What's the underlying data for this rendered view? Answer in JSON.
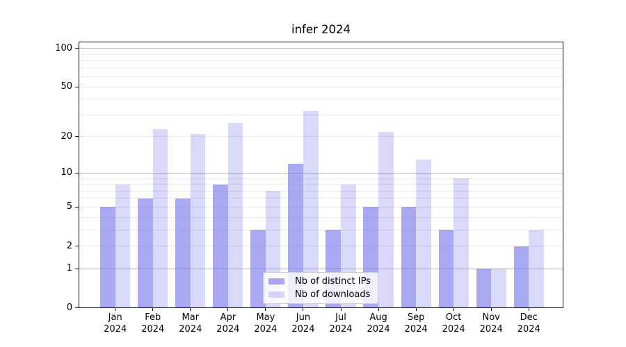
{
  "chart_data": {
    "type": "bar",
    "title": "infer 2024",
    "categories": [
      "Jan 2024",
      "Feb 2024",
      "Mar 2024",
      "Apr 2024",
      "May 2024",
      "Jun 2024",
      "Jul 2024",
      "Aug 2024",
      "Sep 2024",
      "Oct 2024",
      "Nov 2024",
      "Dec 2024"
    ],
    "series": [
      {
        "name": "Nb of distinct IPs",
        "color": "#6969eb",
        "alpha": 0.58,
        "values": [
          5,
          6,
          6,
          8,
          3,
          12,
          3,
          5,
          5,
          3,
          1,
          2
        ]
      },
      {
        "name": "Nb of downloads",
        "color": "#6969eb",
        "alpha": 0.25,
        "values": [
          8,
          23,
          21,
          26,
          7,
          32,
          8,
          22,
          13,
          9,
          1,
          3
        ]
      }
    ],
    "xlabel": "",
    "ylabel": "",
    "yscale": "log1p",
    "yticks": [
      100,
      50,
      20,
      10,
      5,
      2,
      1,
      0
    ],
    "ylim": [
      0,
      113
    ],
    "grid": {
      "shown": true,
      "major": [
        1,
        10,
        100
      ],
      "minor_subs": [
        2,
        3,
        4,
        5,
        6,
        7,
        8,
        9
      ]
    },
    "legend_position": "lower-center"
  },
  "style": {
    "background": "#ffffff",
    "axis_color": "#000000",
    "major_grid_color": "#b4b4b4",
    "minor_grid_color": "#e9e9e9",
    "legend_border_color": "#cccccc"
  }
}
